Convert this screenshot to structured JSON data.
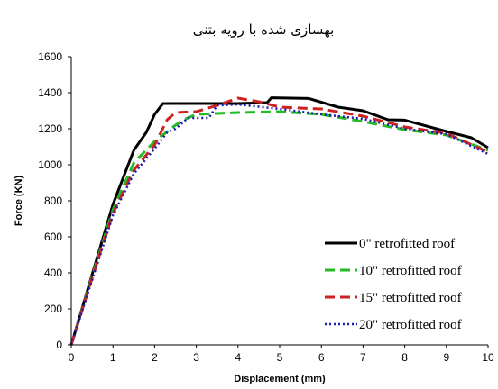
{
  "chart_data": {
    "type": "line",
    "title": "بهسازی شده با رویه بتنی",
    "xlabel": "Displacement (mm)",
    "ylabel": "Force (KN)",
    "xlim": [
      0,
      10
    ],
    "ylim": [
      0,
      1600
    ],
    "xticks": [
      "0",
      "1",
      "2",
      "3",
      "4",
      "5",
      "6",
      "7",
      "8",
      "9",
      "10"
    ],
    "yticks": [
      "0",
      "200",
      "400",
      "600",
      "800",
      "1000",
      "1200",
      "1400",
      "1600"
    ],
    "grid": false,
    "legend_position": "right",
    "series": [
      {
        "name": "0\" retrofitted roof",
        "color": "#000000",
        "style": "solid",
        "points": [
          [
            0,
            0
          ],
          [
            0.5,
            390
          ],
          [
            1,
            780
          ],
          [
            1.5,
            1080
          ],
          [
            1.8,
            1180
          ],
          [
            2.0,
            1280
          ],
          [
            2.2,
            1340
          ],
          [
            3,
            1340
          ],
          [
            4,
            1340
          ],
          [
            4.7,
            1345
          ],
          [
            4.8,
            1372
          ],
          [
            5.7,
            1368
          ],
          [
            6.4,
            1320
          ],
          [
            7.0,
            1300
          ],
          [
            7.6,
            1250
          ],
          [
            8,
            1248
          ],
          [
            9,
            1185
          ],
          [
            9.6,
            1150
          ],
          [
            10,
            1095
          ]
        ]
      },
      {
        "name": "10\" retrofitted roof",
        "color": "#22bb22",
        "style": "dash",
        "points": [
          [
            0,
            0
          ],
          [
            0.5,
            380
          ],
          [
            1,
            750
          ],
          [
            1.5,
            1010
          ],
          [
            2,
            1130
          ],
          [
            2.5,
            1220
          ],
          [
            2.7,
            1250
          ],
          [
            3,
            1280
          ],
          [
            4,
            1290
          ],
          [
            5,
            1295
          ],
          [
            6,
            1280
          ],
          [
            7,
            1240
          ],
          [
            8,
            1195
          ],
          [
            9,
            1165
          ],
          [
            10,
            1080
          ]
        ]
      },
      {
        "name": "15\" retrofitted roof",
        "color": "#cc2222",
        "style": "dash",
        "points": [
          [
            0,
            0
          ],
          [
            0.5,
            370
          ],
          [
            1,
            730
          ],
          [
            1.5,
            970
          ],
          [
            2,
            1110
          ],
          [
            2.3,
            1250
          ],
          [
            2.5,
            1290
          ],
          [
            3,
            1295
          ],
          [
            3.5,
            1330
          ],
          [
            4,
            1370
          ],
          [
            4.5,
            1350
          ],
          [
            5,
            1320
          ],
          [
            6,
            1310
          ],
          [
            7,
            1270
          ],
          [
            8,
            1210
          ],
          [
            9,
            1175
          ],
          [
            10,
            1070
          ]
        ]
      },
      {
        "name": "20\" retrofitted roof",
        "color": "#1c1cb0",
        "style": "dot",
        "points": [
          [
            0,
            0
          ],
          [
            0.5,
            360
          ],
          [
            1,
            720
          ],
          [
            1.5,
            950
          ],
          [
            2,
            1090
          ],
          [
            2.3,
            1180
          ],
          [
            2.5,
            1200
          ],
          [
            2.8,
            1260
          ],
          [
            3.3,
            1260
          ],
          [
            3.5,
            1330
          ],
          [
            4,
            1335
          ],
          [
            5,
            1310
          ],
          [
            6,
            1280
          ],
          [
            7,
            1255
          ],
          [
            8,
            1200
          ],
          [
            9,
            1170
          ],
          [
            10,
            1060
          ]
        ]
      }
    ]
  }
}
